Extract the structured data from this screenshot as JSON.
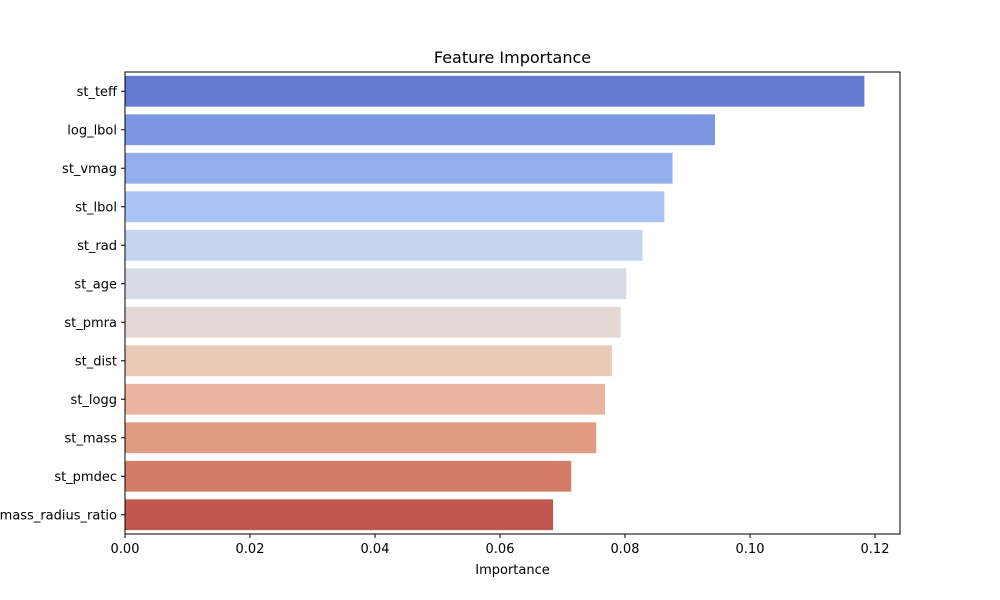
{
  "chart_data": {
    "type": "bar",
    "orientation": "horizontal",
    "title": "Feature Importance",
    "xlabel": "Importance",
    "ylabel": "",
    "xlim": [
      0,
      0.124
    ],
    "xticks": [
      0.0,
      0.02,
      0.04,
      0.06,
      0.08,
      0.1,
      0.12
    ],
    "xtick_labels": [
      "0.00",
      "0.02",
      "0.04",
      "0.06",
      "0.08",
      "0.10",
      "0.12"
    ],
    "grid": false,
    "categories": [
      "st_teff",
      "log_lbol",
      "st_vmag",
      "st_lbol",
      "st_rad",
      "st_age",
      "st_pmra",
      "st_dist",
      "st_logg",
      "st_mass",
      "st_pmdec",
      "mass_radius_ratio"
    ],
    "values": [
      0.1183,
      0.0944,
      0.0876,
      0.0863,
      0.0828,
      0.0802,
      0.0793,
      0.0779,
      0.0768,
      0.0754,
      0.0714,
      0.0685
    ],
    "colors": [
      "#6479d0",
      "#7b97e2",
      "#94afee",
      "#abc3f5",
      "#c3d3f0",
      "#d6dbe5",
      "#e3d8d3",
      "#eac9b9",
      "#ebb49e",
      "#e29a80",
      "#d57c68",
      "#c0584f"
    ]
  }
}
